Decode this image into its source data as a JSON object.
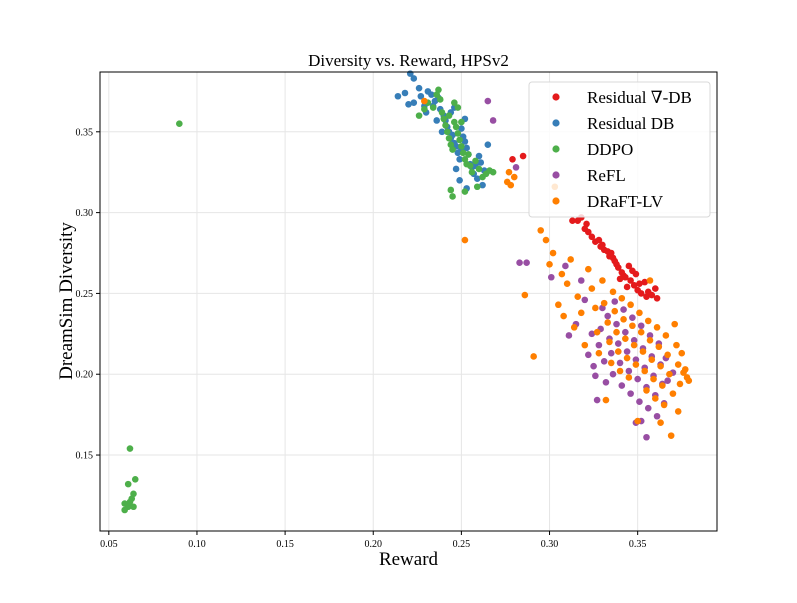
{
  "chart_data": {
    "type": "scatter",
    "title": "Diversity vs. Reward,  HPSv2",
    "xlabel": "Reward",
    "ylabel": "DreamSim Diversity",
    "xlim": [
      0.045,
      0.395
    ],
    "ylim": [
      0.103,
      0.387
    ],
    "xticks": [
      0.05,
      0.1,
      0.15,
      0.2,
      0.25,
      0.3,
      0.35
    ],
    "xtick_labels": [
      "0.05",
      "0.10",
      "0.15",
      "0.20",
      "0.25",
      "0.30",
      "0.35"
    ],
    "yticks": [
      0.15,
      0.2,
      0.25,
      0.3,
      0.35
    ],
    "ytick_labels": [
      "0.15",
      "0.20",
      "0.25",
      "0.30",
      "0.35"
    ],
    "grid": true,
    "legend_position": "top-right",
    "series": [
      {
        "name": "Residual ∇-DB",
        "color": "#e41a1c",
        "points": [
          [
            0.279,
            0.333
          ],
          [
            0.285,
            0.335
          ],
          [
            0.313,
            0.295
          ],
          [
            0.316,
            0.295
          ],
          [
            0.318,
            0.297
          ],
          [
            0.32,
            0.29
          ],
          [
            0.322,
            0.288
          ],
          [
            0.324,
            0.285
          ],
          [
            0.326,
            0.282
          ],
          [
            0.328,
            0.283
          ],
          [
            0.329,
            0.279
          ],
          [
            0.331,
            0.277
          ],
          [
            0.333,
            0.276
          ],
          [
            0.334,
            0.273
          ],
          [
            0.335,
            0.275
          ],
          [
            0.337,
            0.27
          ],
          [
            0.338,
            0.268
          ],
          [
            0.339,
            0.266
          ],
          [
            0.341,
            0.263
          ],
          [
            0.342,
            0.261
          ],
          [
            0.343,
            0.26
          ],
          [
            0.345,
            0.267
          ],
          [
            0.346,
            0.258
          ],
          [
            0.347,
            0.264
          ],
          [
            0.348,
            0.255
          ],
          [
            0.349,
            0.262
          ],
          [
            0.35,
            0.252
          ],
          [
            0.351,
            0.256
          ],
          [
            0.352,
            0.25
          ],
          [
            0.354,
            0.257
          ],
          [
            0.355,
            0.248
          ],
          [
            0.356,
            0.251
          ],
          [
            0.358,
            0.249
          ],
          [
            0.36,
            0.253
          ],
          [
            0.361,
            0.247
          ],
          [
            0.344,
            0.254
          ],
          [
            0.336,
            0.272
          ],
          [
            0.33,
            0.28
          ],
          [
            0.321,
            0.293
          ],
          [
            0.34,
            0.259
          ]
        ]
      },
      {
        "name": "Residual DB",
        "color": "#377eb8",
        "points": [
          [
            0.214,
            0.372
          ],
          [
            0.218,
            0.374
          ],
          [
            0.221,
            0.386
          ],
          [
            0.223,
            0.383
          ],
          [
            0.22,
            0.367
          ],
          [
            0.223,
            0.368
          ],
          [
            0.226,
            0.377
          ],
          [
            0.227,
            0.372
          ],
          [
            0.229,
            0.366
          ],
          [
            0.23,
            0.362
          ],
          [
            0.231,
            0.375
          ],
          [
            0.233,
            0.373
          ],
          [
            0.235,
            0.369
          ],
          [
            0.237,
            0.371
          ],
          [
            0.238,
            0.364
          ],
          [
            0.24,
            0.36
          ],
          [
            0.241,
            0.357
          ],
          [
            0.242,
            0.353
          ],
          [
            0.243,
            0.35
          ],
          [
            0.244,
            0.346
          ],
          [
            0.245,
            0.348
          ],
          [
            0.246,
            0.343
          ],
          [
            0.247,
            0.341
          ],
          [
            0.248,
            0.337
          ],
          [
            0.249,
            0.333
          ],
          [
            0.25,
            0.339
          ],
          [
            0.251,
            0.347
          ],
          [
            0.252,
            0.344
          ],
          [
            0.253,
            0.34
          ],
          [
            0.254,
            0.336
          ],
          [
            0.255,
            0.33
          ],
          [
            0.256,
            0.328
          ],
          [
            0.257,
            0.324
          ],
          [
            0.258,
            0.329
          ],
          [
            0.259,
            0.321
          ],
          [
            0.26,
            0.335
          ],
          [
            0.261,
            0.331
          ],
          [
            0.263,
            0.326
          ],
          [
            0.265,
            0.342
          ],
          [
            0.247,
            0.327
          ],
          [
            0.249,
            0.32
          ],
          [
            0.252,
            0.358
          ],
          [
            0.244,
            0.362
          ],
          [
            0.239,
            0.35
          ],
          [
            0.262,
            0.317
          ],
          [
            0.253,
            0.315
          ],
          [
            0.25,
            0.352
          ],
          [
            0.246,
            0.365
          ],
          [
            0.234,
            0.366
          ],
          [
            0.236,
            0.357
          ]
        ]
      },
      {
        "name": "DDPO",
        "color": "#4daf4a",
        "points": [
          [
            0.062,
            0.154
          ],
          [
            0.065,
            0.135
          ],
          [
            0.061,
            0.132
          ],
          [
            0.064,
            0.126
          ],
          [
            0.063,
            0.123
          ],
          [
            0.062,
            0.121
          ],
          [
            0.059,
            0.12
          ],
          [
            0.061,
            0.118
          ],
          [
            0.064,
            0.118
          ],
          [
            0.059,
            0.116
          ],
          [
            0.09,
            0.355
          ],
          [
            0.226,
            0.36
          ],
          [
            0.229,
            0.364
          ],
          [
            0.231,
            0.368
          ],
          [
            0.234,
            0.365
          ],
          [
            0.236,
            0.373
          ],
          [
            0.237,
            0.376
          ],
          [
            0.238,
            0.37
          ],
          [
            0.239,
            0.362
          ],
          [
            0.24,
            0.358
          ],
          [
            0.241,
            0.354
          ],
          [
            0.242,
            0.35
          ],
          [
            0.243,
            0.346
          ],
          [
            0.244,
            0.342
          ],
          [
            0.245,
            0.339
          ],
          [
            0.246,
            0.356
          ],
          [
            0.247,
            0.353
          ],
          [
            0.248,
            0.349
          ],
          [
            0.249,
            0.345
          ],
          [
            0.25,
            0.341
          ],
          [
            0.251,
            0.337
          ],
          [
            0.252,
            0.333
          ],
          [
            0.253,
            0.33
          ],
          [
            0.254,
            0.336
          ],
          [
            0.255,
            0.329
          ],
          [
            0.256,
            0.325
          ],
          [
            0.258,
            0.332
          ],
          [
            0.26,
            0.327
          ],
          [
            0.262,
            0.322
          ],
          [
            0.264,
            0.324
          ],
          [
            0.266,
            0.326
          ],
          [
            0.268,
            0.325
          ],
          [
            0.244,
            0.314
          ],
          [
            0.245,
            0.31
          ],
          [
            0.252,
            0.313
          ],
          [
            0.259,
            0.316
          ],
          [
            0.248,
            0.365
          ],
          [
            0.246,
            0.368
          ],
          [
            0.243,
            0.36
          ],
          [
            0.25,
            0.356
          ]
        ]
      },
      {
        "name": "ReFL",
        "color": "#984ea3",
        "points": [
          [
            0.265,
            0.369
          ],
          [
            0.268,
            0.357
          ],
          [
            0.281,
            0.328
          ],
          [
            0.283,
            0.269
          ],
          [
            0.287,
            0.269
          ],
          [
            0.301,
            0.26
          ],
          [
            0.309,
            0.267
          ],
          [
            0.311,
            0.224
          ],
          [
            0.315,
            0.231
          ],
          [
            0.318,
            0.258
          ],
          [
            0.32,
            0.246
          ],
          [
            0.322,
            0.212
          ],
          [
            0.324,
            0.225
          ],
          [
            0.325,
            0.205
          ],
          [
            0.326,
            0.199
          ],
          [
            0.327,
            0.184
          ],
          [
            0.328,
            0.218
          ],
          [
            0.329,
            0.228
          ],
          [
            0.33,
            0.241
          ],
          [
            0.331,
            0.208
          ],
          [
            0.332,
            0.195
          ],
          [
            0.333,
            0.236
          ],
          [
            0.334,
            0.222
          ],
          [
            0.335,
            0.213
          ],
          [
            0.336,
            0.2
          ],
          [
            0.337,
            0.245
          ],
          [
            0.338,
            0.231
          ],
          [
            0.339,
            0.219
          ],
          [
            0.34,
            0.207
          ],
          [
            0.341,
            0.193
          ],
          [
            0.342,
            0.24
          ],
          [
            0.343,
            0.226
          ],
          [
            0.344,
            0.214
          ],
          [
            0.345,
            0.202
          ],
          [
            0.346,
            0.188
          ],
          [
            0.347,
            0.235
          ],
          [
            0.348,
            0.221
          ],
          [
            0.349,
            0.209
          ],
          [
            0.35,
            0.197
          ],
          [
            0.351,
            0.183
          ],
          [
            0.352,
            0.23
          ],
          [
            0.353,
            0.216
          ],
          [
            0.354,
            0.204
          ],
          [
            0.355,
            0.192
          ],
          [
            0.356,
            0.179
          ],
          [
            0.357,
            0.224
          ],
          [
            0.358,
            0.211
          ],
          [
            0.359,
            0.199
          ],
          [
            0.36,
            0.187
          ],
          [
            0.361,
            0.174
          ],
          [
            0.362,
            0.219
          ],
          [
            0.363,
            0.206
          ],
          [
            0.364,
            0.194
          ],
          [
            0.365,
            0.182
          ],
          [
            0.366,
            0.21
          ],
          [
            0.352,
            0.171
          ],
          [
            0.355,
            0.161
          ],
          [
            0.349,
            0.17
          ],
          [
            0.367,
            0.196
          ],
          [
            0.37,
            0.201
          ]
        ]
      },
      {
        "name": "DRaFT-LV",
        "color": "#ff7f00",
        "points": [
          [
            0.229,
            0.369
          ],
          [
            0.252,
            0.283
          ],
          [
            0.276,
            0.319
          ],
          [
            0.278,
            0.317
          ],
          [
            0.277,
            0.325
          ],
          [
            0.28,
            0.322
          ],
          [
            0.286,
            0.249
          ],
          [
            0.291,
            0.211
          ],
          [
            0.295,
            0.289
          ],
          [
            0.298,
            0.283
          ],
          [
            0.3,
            0.268
          ],
          [
            0.302,
            0.275
          ],
          [
            0.303,
            0.316
          ],
          [
            0.305,
            0.243
          ],
          [
            0.307,
            0.262
          ],
          [
            0.308,
            0.236
          ],
          [
            0.31,
            0.256
          ],
          [
            0.312,
            0.271
          ],
          [
            0.314,
            0.229
          ],
          [
            0.316,
            0.248
          ],
          [
            0.318,
            0.238
          ],
          [
            0.32,
            0.218
          ],
          [
            0.322,
            0.265
          ],
          [
            0.324,
            0.253
          ],
          [
            0.326,
            0.241
          ],
          [
            0.327,
            0.226
          ],
          [
            0.328,
            0.213
          ],
          [
            0.33,
            0.258
          ],
          [
            0.331,
            0.244
          ],
          [
            0.332,
            0.184
          ],
          [
            0.333,
            0.232
          ],
          [
            0.334,
            0.22
          ],
          [
            0.335,
            0.207
          ],
          [
            0.336,
            0.251
          ],
          [
            0.337,
            0.239
          ],
          [
            0.338,
            0.226
          ],
          [
            0.339,
            0.214
          ],
          [
            0.34,
            0.202
          ],
          [
            0.341,
            0.247
          ],
          [
            0.342,
            0.234
          ],
          [
            0.343,
            0.222
          ],
          [
            0.344,
            0.21
          ],
          [
            0.345,
            0.198
          ],
          [
            0.346,
            0.243
          ],
          [
            0.347,
            0.23
          ],
          [
            0.348,
            0.218
          ],
          [
            0.349,
            0.206
          ],
          [
            0.35,
            0.171
          ],
          [
            0.351,
            0.238
          ],
          [
            0.352,
            0.226
          ],
          [
            0.353,
            0.214
          ],
          [
            0.354,
            0.202
          ],
          [
            0.355,
            0.19
          ],
          [
            0.356,
            0.233
          ],
          [
            0.357,
            0.221
          ],
          [
            0.358,
            0.209
          ],
          [
            0.359,
            0.197
          ],
          [
            0.36,
            0.185
          ],
          [
            0.361,
            0.229
          ],
          [
            0.362,
            0.217
          ],
          [
            0.363,
            0.205
          ],
          [
            0.364,
            0.193
          ],
          [
            0.365,
            0.181
          ],
          [
            0.366,
            0.224
          ],
          [
            0.367,
            0.212
          ],
          [
            0.368,
            0.2
          ],
          [
            0.369,
            0.162
          ],
          [
            0.37,
            0.188
          ],
          [
            0.371,
            0.231
          ],
          [
            0.372,
            0.218
          ],
          [
            0.373,
            0.206
          ],
          [
            0.374,
            0.194
          ],
          [
            0.375,
            0.213
          ],
          [
            0.376,
            0.201
          ],
          [
            0.377,
            0.203
          ],
          [
            0.378,
            0.198
          ],
          [
            0.379,
            0.196
          ],
          [
            0.373,
            0.177
          ],
          [
            0.363,
            0.17
          ],
          [
            0.357,
            0.258
          ]
        ]
      }
    ]
  }
}
